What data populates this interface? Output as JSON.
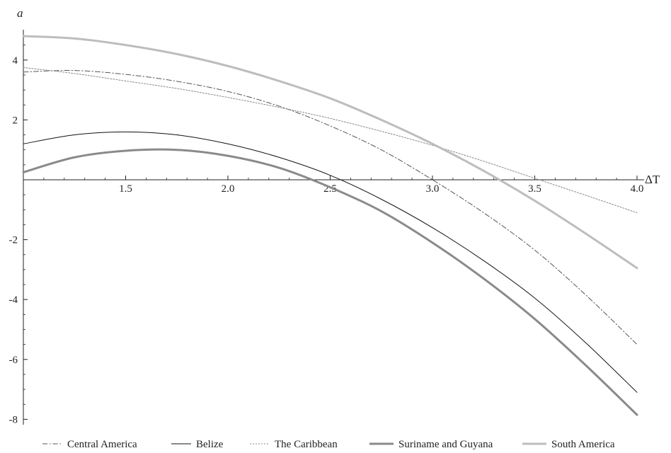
{
  "chart_data": {
    "type": "line",
    "xlabel": "ΔT",
    "ylabel": "a",
    "xlim": [
      1.0,
      4.0
    ],
    "ylim": [
      -8.2,
      5.0
    ],
    "x_ticks": [
      "1.5",
      "2.0",
      "2.5",
      "3.0",
      "3.5",
      "4.0"
    ],
    "y_ticks": [
      "-8",
      "-6",
      "-4",
      "-2",
      "2",
      "4"
    ],
    "legend_position": "bottom",
    "series": [
      {
        "name": "Central America",
        "style": "dashdot",
        "color": "#555555",
        "x": [
          1.0,
          1.25,
          1.5,
          1.75,
          2.0,
          2.25,
          2.5,
          2.75,
          3.0,
          3.25,
          3.5,
          3.75,
          4.0
        ],
        "values": [
          3.6,
          3.65,
          3.52,
          3.29,
          2.95,
          2.46,
          1.8,
          1.0,
          0.0,
          -1.1,
          -2.35,
          -3.85,
          -5.5
        ]
      },
      {
        "name": "Belize",
        "style": "solid",
        "color": "#111111",
        "x": [
          1.0,
          1.25,
          1.5,
          1.75,
          2.0,
          2.25,
          2.5,
          2.75,
          3.0,
          3.25,
          3.5,
          3.75,
          4.0
        ],
        "values": [
          1.2,
          1.5,
          1.6,
          1.5,
          1.2,
          0.75,
          0.15,
          -0.65,
          -1.6,
          -2.7,
          -3.95,
          -5.45,
          -7.1
        ]
      },
      {
        "name": "The Caribbean",
        "style": "dotted",
        "color": "#888888",
        "x": [
          1.0,
          1.25,
          1.5,
          1.75,
          2.0,
          2.25,
          2.5,
          2.75,
          3.0,
          3.25,
          3.5,
          3.75,
          4.0
        ],
        "values": [
          3.75,
          3.55,
          3.3,
          3.05,
          2.75,
          2.42,
          2.05,
          1.62,
          1.15,
          0.62,
          0.05,
          -0.52,
          -1.1
        ]
      },
      {
        "name": "Suriname and Guyana",
        "style": "thick",
        "color": "#8a8a8a",
        "x": [
          1.0,
          1.25,
          1.5,
          1.75,
          2.0,
          2.25,
          2.5,
          2.75,
          3.0,
          3.25,
          3.5,
          3.75,
          4.0
        ],
        "values": [
          0.25,
          0.75,
          0.97,
          1.0,
          0.8,
          0.4,
          -0.25,
          -1.05,
          -2.1,
          -3.3,
          -4.65,
          -6.2,
          -7.85
        ]
      },
      {
        "name": "South America",
        "style": "thick",
        "color": "#bdbdbd",
        "x": [
          1.0,
          1.25,
          1.5,
          1.75,
          2.0,
          2.25,
          2.5,
          2.75,
          3.0,
          3.25,
          3.5,
          3.75,
          4.0
        ],
        "values": [
          4.8,
          4.72,
          4.5,
          4.2,
          3.8,
          3.3,
          2.72,
          2.0,
          1.2,
          0.3,
          -0.7,
          -1.8,
          -2.95
        ]
      }
    ]
  }
}
